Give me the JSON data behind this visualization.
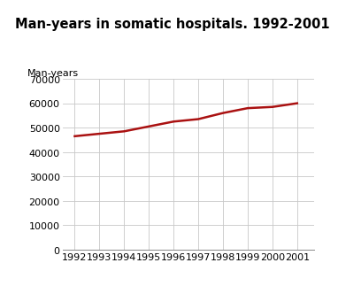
{
  "title": "Man-years in somatic hospitals. 1992-2001",
  "ylabel": "Man-years",
  "years": [
    1992,
    1993,
    1994,
    1995,
    1996,
    1997,
    1998,
    1999,
    2000,
    2001
  ],
  "values": [
    46500,
    47500,
    48500,
    50500,
    52500,
    53500,
    56000,
    58000,
    58500,
    60000
  ],
  "line_color": "#aa1111",
  "line_width": 1.8,
  "ylim": [
    0,
    70000
  ],
  "yticks": [
    0,
    10000,
    20000,
    30000,
    40000,
    50000,
    60000,
    70000
  ],
  "grid_color": "#c8c8c8",
  "background_color": "#ffffff",
  "title_fontsize": 10.5,
  "label_fontsize": 8,
  "tick_fontsize": 8,
  "header_bar_color": "#4db8b8"
}
